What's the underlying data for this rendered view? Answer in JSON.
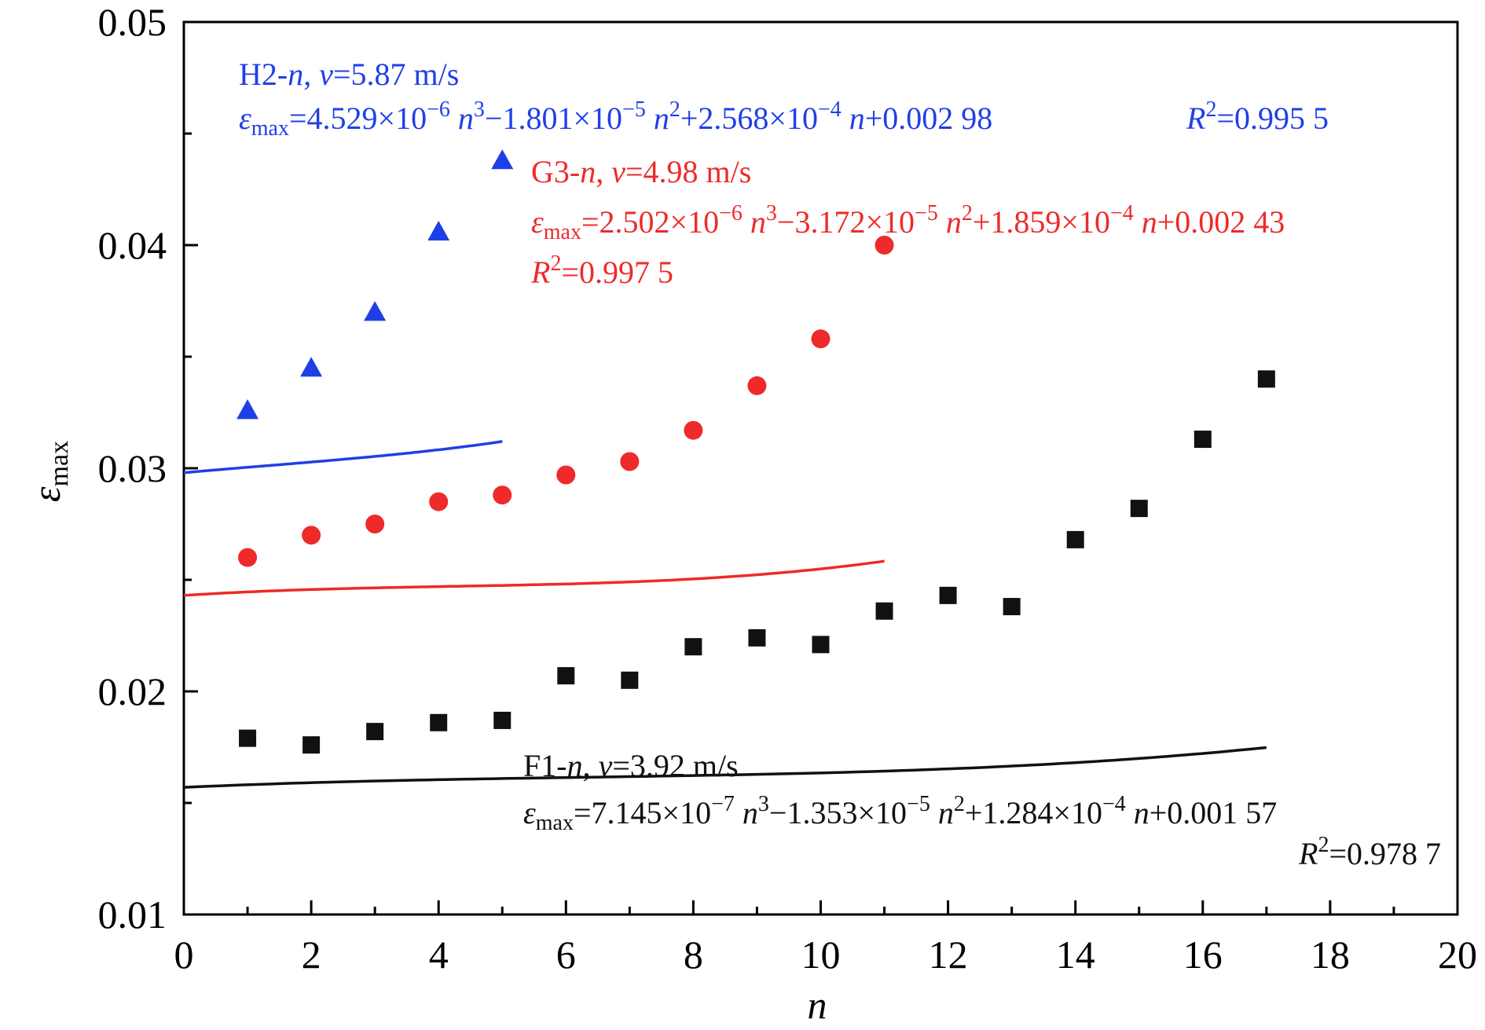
{
  "chart_data": {
    "type": "scatter",
    "xlabel": "n",
    "ylabel_main": "ε",
    "ylabel_sub": "max",
    "xlim": [
      0,
      20
    ],
    "ylim": [
      0.01,
      0.05
    ],
    "x_ticks": [
      0,
      2,
      4,
      6,
      8,
      10,
      12,
      14,
      16,
      18,
      20
    ],
    "x_tick_labels": [
      "0",
      "2",
      "4",
      "6",
      "8",
      "10",
      "12",
      "14",
      "16",
      "18",
      "20"
    ],
    "y_ticks": [
      0.01,
      0.02,
      0.03,
      0.04,
      0.05
    ],
    "y_tick_labels": [
      "0.01",
      "0.02",
      "0.03",
      "0.04",
      "0.05"
    ],
    "grid": false,
    "series": [
      {
        "id": "H2",
        "marker": "triangle",
        "color": "#1f3fe6",
        "x": [
          1,
          2,
          3,
          4,
          5
        ],
        "y": [
          0.0326,
          0.0345,
          0.037,
          0.0406,
          0.0438
        ],
        "fit": {
          "a3": 4.529e-06,
          "a2": -1.801e-05,
          "a1": 0.0002568,
          "a0": 0.00298,
          "x_range": [
            0,
            5
          ]
        }
      },
      {
        "id": "G3",
        "marker": "circle",
        "color": "#ee2a2a",
        "x": [
          1,
          2,
          3,
          4,
          5,
          6,
          7,
          8,
          9,
          10,
          11
        ],
        "y": [
          0.026,
          0.027,
          0.0275,
          0.0285,
          0.0288,
          0.0297,
          0.0303,
          0.0317,
          0.0337,
          0.0358,
          0.04
        ],
        "fit": {
          "a3": 2.502e-06,
          "a2": -3.172e-05,
          "a1": 0.0001859,
          "a0": 0.00243,
          "x_range": [
            0,
            11
          ]
        }
      },
      {
        "id": "F1",
        "marker": "square",
        "color": "#111111",
        "x": [
          1,
          2,
          3,
          4,
          5,
          6,
          7,
          8,
          9,
          10,
          11,
          12,
          13,
          14,
          15,
          16,
          17
        ],
        "y": [
          0.0179,
          0.0176,
          0.0182,
          0.0186,
          0.0187,
          0.0207,
          0.0205,
          0.022,
          0.0224,
          0.0221,
          0.0236,
          0.0243,
          0.0238,
          0.0268,
          0.0282,
          0.0313,
          0.034
        ],
        "fit": {
          "a3": 7.145e-07,
          "a2": -1.353e-05,
          "a1": 0.0001284,
          "a0": 0.00157,
          "x_range": [
            0,
            17
          ]
        }
      }
    ],
    "annotations": {
      "H2": {
        "line1": {
          "name": "H2-",
          "n": "n",
          "sep": ", ",
          "v": "v",
          "val": "=5.87 m/s"
        },
        "line2": {
          "eps": "ε",
          "sub": "max",
          "t1": "=4.529×10",
          "e1": "−6",
          "n1": " n",
          "p1": "3",
          "t2": "−1.801×10",
          "e2": "−5",
          "n2": " n",
          "p2": "2",
          "t3": "+2.568×10",
          "e3": "−4",
          "n3": " n",
          "t4": "+0.002 98",
          "r": "R",
          "r2": "2",
          "rv": "=0.995 5"
        }
      },
      "G3": {
        "line1": {
          "name": "G3-",
          "n": "n",
          "sep": ", ",
          "v": "v",
          "val": "=4.98 m/s"
        },
        "line2": {
          "eps": "ε",
          "sub": "max",
          "t1": "=2.502×10",
          "e1": "−6",
          "n1": " n",
          "p1": "3",
          "t2": "−3.172×10",
          "e2": "−5",
          "n2": " n",
          "p2": "2",
          "t3": "+1.859×10",
          "e3": "−4",
          "n3": " n",
          "t4": "+0.002 43"
        },
        "line3": {
          "r": "R",
          "r2": "2",
          "rv": "=0.997 5"
        }
      },
      "F1": {
        "line1": {
          "name": "F1-",
          "n": "n",
          "sep": ", ",
          "v": "v",
          "val": "=3.92 m/s"
        },
        "line2": {
          "eps": "ε",
          "sub": "max",
          "t1": "=7.145×10",
          "e1": "−7",
          "n1": " n",
          "p1": "3",
          "t2": "−1.353×10",
          "e2": "−5",
          "n2": " n",
          "p2": "2",
          "t3": "+1.284×10",
          "e3": "−4",
          "n3": " n",
          "t4": "+0.001 57"
        },
        "line3": {
          "r": "R",
          "r2": "2",
          "rv": "=0.978 7"
        }
      }
    }
  }
}
